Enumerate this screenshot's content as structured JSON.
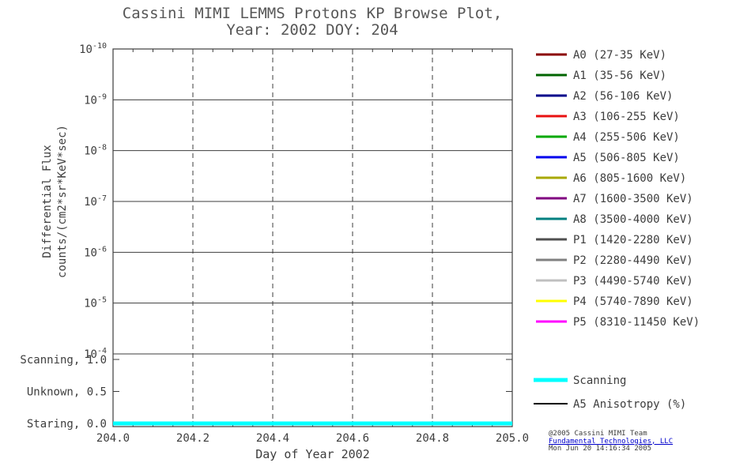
{
  "page": {
    "bg": "#ffffff",
    "text_color": "#3d3d3d"
  },
  "title": {
    "line1": "Cassini MIMI LEMMS Protons KP Browse Plot,",
    "line2": "Year: 2002 DOY: 204"
  },
  "chart_data": {
    "type": "line",
    "title": "Cassini MIMI LEMMS Protons KP Browse Plot, Year: 2002 DOY: 204",
    "xlabel": "Day of Year 2002",
    "ylabel_line1": "Differential Flux",
    "ylabel_line2": "counts/(cm2*sr*KeV*sec)",
    "xlim": [
      204.0,
      205.0
    ],
    "x_ticks": [
      "204.0",
      "204.2",
      "204.4",
      "204.6",
      "204.8",
      "205.0"
    ],
    "x_minor_tick_step": 0.05,
    "y_axis": {
      "scale": "log",
      "tick_exponents": [
        -10,
        -9,
        -8,
        -7,
        -6,
        -5,
        -4
      ],
      "top_label": "10^-10",
      "bottom_label": "10^-4"
    },
    "mode_axis": {
      "ticks": [
        {
          "label": "Scanning, 1.0",
          "value": 1.0
        },
        {
          "label": "Unknown, 0.5",
          "value": 0.5
        },
        {
          "label": "Staring, 0.0",
          "value": 0.0
        }
      ]
    },
    "grid": {
      "horizontal_style": "solid",
      "vertical_style": "dashed"
    },
    "series": [
      {
        "name": "Scanning",
        "color": "#00ffff",
        "axis": "mode",
        "x": [
          204.0,
          205.0
        ],
        "y": [
          0.0,
          0.0
        ],
        "linewidth": 5,
        "note": "flat line at Staring (0.0) across entire day; no flux channel data plotted"
      }
    ]
  },
  "legend": {
    "channels": [
      {
        "label": "A0 (27-35 KeV)",
        "color": "#8b0000"
      },
      {
        "label": "A1 (35-56 KeV)",
        "color": "#006400"
      },
      {
        "label": "A2 (56-106 KeV)",
        "color": "#00008b"
      },
      {
        "label": "A3 (106-255 KeV)",
        "color": "#e81010"
      },
      {
        "label": "A4 (255-506 KeV)",
        "color": "#00a800"
      },
      {
        "label": "A5 (506-805 KeV)",
        "color": "#0000ee"
      },
      {
        "label": "A6 (805-1600 KeV)",
        "color": "#a8a800"
      },
      {
        "label": "A7 (1600-3500 KeV)",
        "color": "#800080"
      },
      {
        "label": "A8 (3500-4000 KeV)",
        "color": "#008080"
      },
      {
        "label": "P1 (1420-2280 KeV)",
        "color": "#505050"
      },
      {
        "label": "P2 (2280-4490 KeV)",
        "color": "#808080"
      },
      {
        "label": "P3 (4490-5740 KeV)",
        "color": "#c0c0c0"
      },
      {
        "label": "P4 (5740-7890 KeV)",
        "color": "#ffff00"
      },
      {
        "label": "P5 (8310-11450 KeV)",
        "color": "#ff00ff"
      }
    ],
    "extra": [
      {
        "label": "Scanning",
        "color": "#00ffff",
        "linewidth": 5
      },
      {
        "label": "A5 Anisotropy (%)",
        "color": "#000000",
        "linewidth": 2
      }
    ]
  },
  "footer": {
    "line1": "@2005 Cassini MIMI Team",
    "line2": "Fundamental Technologies, LLC",
    "line3": "Mon Jun 20 14:16:34 2005",
    "link_color": "#0000cc"
  }
}
